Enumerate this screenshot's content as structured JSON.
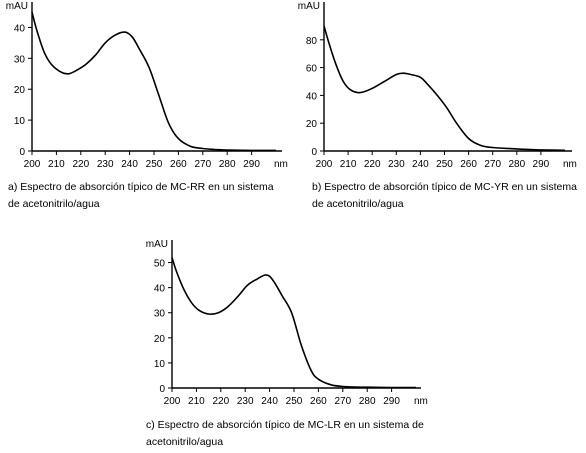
{
  "chart_data": [
    {
      "type": "line",
      "panel": "a",
      "caption": "a) Espectro de absorción típico de MC-RR en un sistema de acetonitrilo/agua",
      "ylabel": "mAU",
      "xunit": "nm",
      "xlim": [
        200,
        300
      ],
      "ylim": [
        0,
        45
      ],
      "xticks": [
        200,
        210,
        220,
        230,
        240,
        250,
        260,
        270,
        280,
        290
      ],
      "yticks": [
        0,
        10,
        20,
        30,
        40
      ],
      "grid": false,
      "x": [
        200,
        202,
        205,
        208,
        212,
        215,
        218,
        222,
        226,
        230,
        234,
        238,
        241,
        244,
        248,
        252,
        256,
        260,
        265,
        270,
        275,
        280,
        290,
        300
      ],
      "y": [
        45,
        39,
        32,
        28,
        25.5,
        25,
        26,
        28,
        31,
        35,
        37.5,
        38.5,
        37,
        33,
        27,
        18,
        9,
        4,
        1.5,
        0.8,
        0.5,
        0.3,
        0.2,
        0.2
      ]
    },
    {
      "type": "line",
      "panel": "b",
      "caption": "b) Espectro de absorción típico de MC-YR en un sistema de acetonitrilo/agua",
      "ylabel": "mAU",
      "xunit": "nm",
      "xlim": [
        200,
        300
      ],
      "ylim": [
        0,
        100
      ],
      "xticks": [
        200,
        210,
        220,
        230,
        240,
        250,
        260,
        270,
        280,
        290
      ],
      "yticks": [
        0,
        20,
        40,
        60,
        80
      ],
      "grid": false,
      "x": [
        200,
        202,
        205,
        208,
        211,
        215,
        220,
        225,
        230,
        233,
        236,
        240,
        243,
        247,
        251,
        255,
        260,
        265,
        270,
        280,
        290,
        300
      ],
      "y": [
        90,
        78,
        62,
        50,
        44,
        42,
        45,
        50,
        55,
        56,
        55,
        53,
        48,
        40,
        31,
        20,
        9,
        4,
        2.5,
        1.5,
        0.8,
        0.5
      ]
    },
    {
      "type": "line",
      "panel": "c",
      "caption": "c) Espectro de absorción típico de MC-LR en un sistema de acetonitrilo/agua",
      "ylabel": "mAU",
      "xunit": "nm",
      "xlim": [
        200,
        300
      ],
      "ylim": [
        0,
        55
      ],
      "xticks": [
        200,
        210,
        220,
        230,
        240,
        250,
        260,
        270,
        280,
        290
      ],
      "yticks": [
        0,
        10,
        20,
        30,
        40,
        50
      ],
      "grid": false,
      "x": [
        200,
        202,
        205,
        208,
        211,
        215,
        219,
        223,
        227,
        231,
        235,
        238,
        240,
        242,
        245,
        249,
        253,
        257,
        260,
        265,
        270,
        280,
        290,
        300
      ],
      "y": [
        52,
        46,
        39,
        34,
        31,
        29.5,
        30,
        32.5,
        36.5,
        41,
        43.5,
        45,
        44.5,
        42,
        37,
        30,
        17,
        7,
        3.5,
        1.3,
        0.6,
        0.3,
        0.2,
        0.2
      ]
    }
  ]
}
